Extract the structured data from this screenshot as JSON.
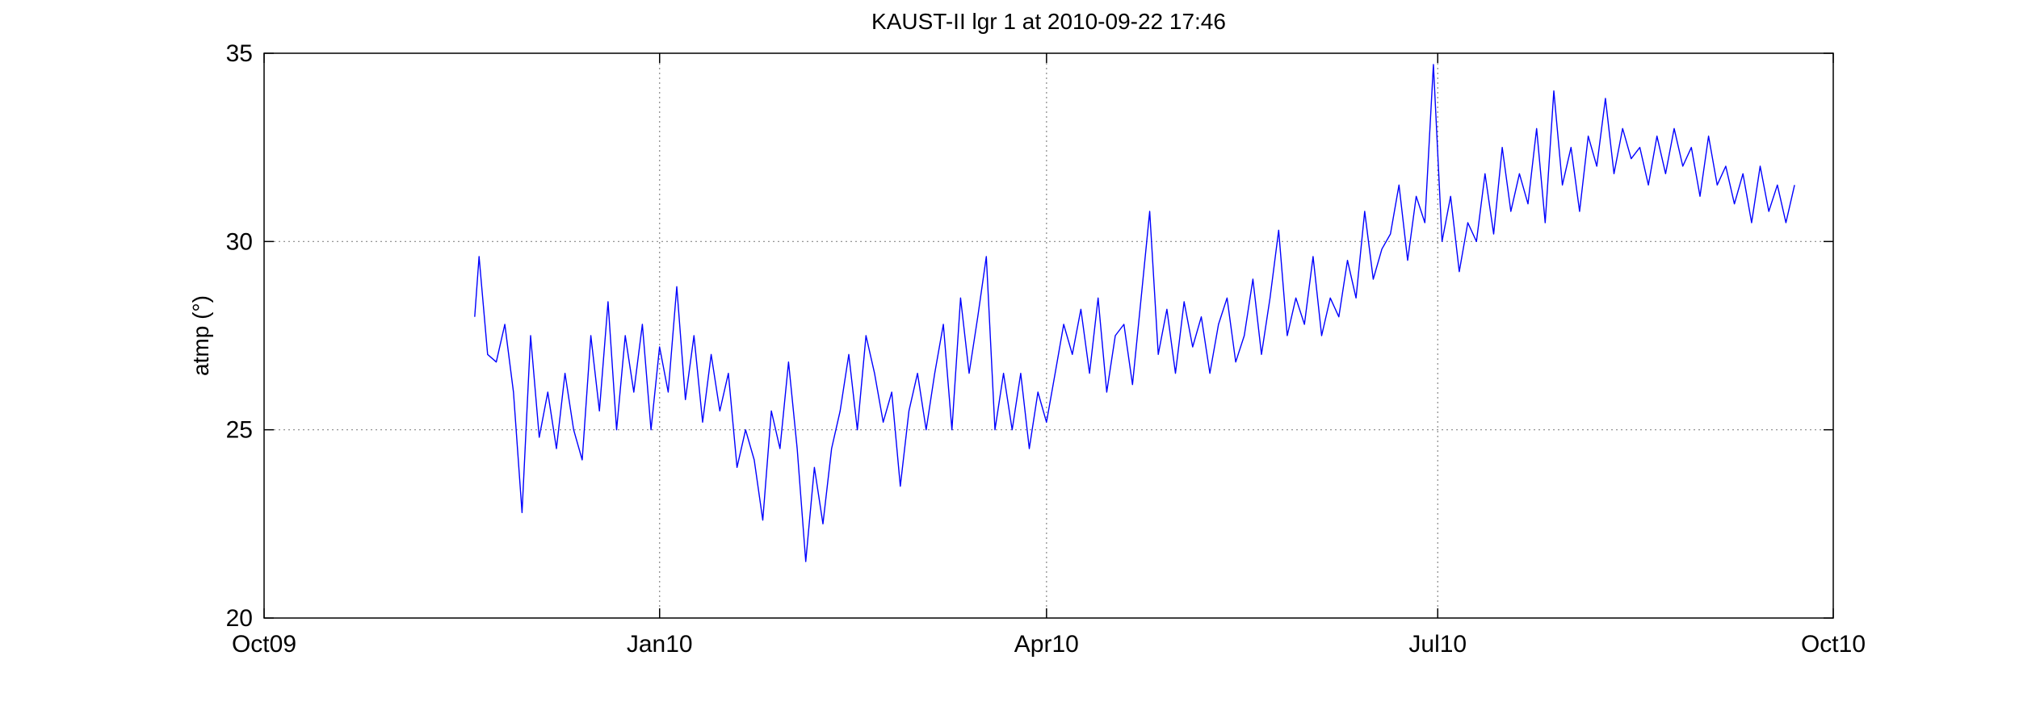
{
  "chart_data": {
    "type": "line",
    "title": "KAUST-II lgr 1 at 2010-09-22 17:46",
    "xlabel": "",
    "ylabel": "atmp (°)",
    "xlim": [
      "2009-10-01",
      "2010-10-01"
    ],
    "ylim": [
      20,
      35
    ],
    "xticks": [
      {
        "date": "2009-10-01",
        "label": "Oct09"
      },
      {
        "date": "2010-01-01",
        "label": "Jan10"
      },
      {
        "date": "2010-04-01",
        "label": "Apr10"
      },
      {
        "date": "2010-07-01",
        "label": "Jul10"
      },
      {
        "date": "2010-10-01",
        "label": "Oct10"
      }
    ],
    "yticks": [
      20,
      25,
      30,
      35
    ],
    "grid": true,
    "line_color": "#0000ff",
    "series": [
      {
        "name": "",
        "x": [
          "2009-11-19",
          "2009-11-20",
          "2009-11-22",
          "2009-11-24",
          "2009-11-26",
          "2009-11-28",
          "2009-11-30",
          "2009-12-02",
          "2009-12-04",
          "2009-12-06",
          "2009-12-08",
          "2009-12-10",
          "2009-12-12",
          "2009-12-14",
          "2009-12-16",
          "2009-12-18",
          "2009-12-20",
          "2009-12-22",
          "2009-12-24",
          "2009-12-26",
          "2009-12-28",
          "2009-12-30",
          "2010-01-01",
          "2010-01-03",
          "2010-01-05",
          "2010-01-07",
          "2010-01-09",
          "2010-01-11",
          "2010-01-13",
          "2010-01-15",
          "2010-01-17",
          "2010-01-19",
          "2010-01-21",
          "2010-01-23",
          "2010-01-25",
          "2010-01-27",
          "2010-01-29",
          "2010-01-31",
          "2010-02-02",
          "2010-02-04",
          "2010-02-06",
          "2010-02-08",
          "2010-02-10",
          "2010-02-12",
          "2010-02-14",
          "2010-02-16",
          "2010-02-18",
          "2010-02-20",
          "2010-02-22",
          "2010-02-24",
          "2010-02-26",
          "2010-02-28",
          "2010-03-02",
          "2010-03-04",
          "2010-03-06",
          "2010-03-08",
          "2010-03-10",
          "2010-03-12",
          "2010-03-14",
          "2010-03-16",
          "2010-03-18",
          "2010-03-20",
          "2010-03-22",
          "2010-03-24",
          "2010-03-26",
          "2010-03-28",
          "2010-03-30",
          "2010-04-01",
          "2010-04-03",
          "2010-04-05",
          "2010-04-07",
          "2010-04-09",
          "2010-04-11",
          "2010-04-13",
          "2010-04-15",
          "2010-04-17",
          "2010-04-19",
          "2010-04-21",
          "2010-04-23",
          "2010-04-25",
          "2010-04-27",
          "2010-04-29",
          "2010-05-01",
          "2010-05-03",
          "2010-05-05",
          "2010-05-07",
          "2010-05-09",
          "2010-05-11",
          "2010-05-13",
          "2010-05-15",
          "2010-05-17",
          "2010-05-19",
          "2010-05-21",
          "2010-05-23",
          "2010-05-25",
          "2010-05-27",
          "2010-05-29",
          "2010-05-31",
          "2010-06-02",
          "2010-06-04",
          "2010-06-06",
          "2010-06-08",
          "2010-06-10",
          "2010-06-12",
          "2010-06-14",
          "2010-06-16",
          "2010-06-18",
          "2010-06-20",
          "2010-06-22",
          "2010-06-24",
          "2010-06-26",
          "2010-06-28",
          "2010-06-30",
          "2010-07-02",
          "2010-07-04",
          "2010-07-06",
          "2010-07-08",
          "2010-07-10",
          "2010-07-12",
          "2010-07-14",
          "2010-07-16",
          "2010-07-18",
          "2010-07-20",
          "2010-07-22",
          "2010-07-24",
          "2010-07-26",
          "2010-07-28",
          "2010-07-30",
          "2010-08-01",
          "2010-08-03",
          "2010-08-05",
          "2010-08-07",
          "2010-08-09",
          "2010-08-11",
          "2010-08-13",
          "2010-08-15",
          "2010-08-17",
          "2010-08-19",
          "2010-08-21",
          "2010-08-23",
          "2010-08-25",
          "2010-08-27",
          "2010-08-29",
          "2010-08-31",
          "2010-09-02",
          "2010-09-04",
          "2010-09-06",
          "2010-09-08",
          "2010-09-10",
          "2010-09-12",
          "2010-09-14",
          "2010-09-16",
          "2010-09-18",
          "2010-09-20",
          "2010-09-22"
        ],
        "y": [
          28.0,
          29.6,
          27.0,
          26.8,
          27.8,
          26.0,
          22.8,
          27.5,
          24.8,
          26.0,
          24.5,
          26.5,
          25.0,
          24.2,
          27.5,
          25.5,
          28.4,
          25.0,
          27.5,
          26.0,
          27.8,
          25.0,
          27.2,
          26.0,
          28.8,
          25.8,
          27.5,
          25.2,
          27.0,
          25.5,
          26.5,
          24.0,
          25.0,
          24.2,
          22.6,
          25.5,
          24.5,
          26.8,
          24.5,
          21.5,
          24.0,
          22.5,
          24.5,
          25.5,
          27.0,
          25.0,
          27.5,
          26.5,
          25.2,
          26.0,
          23.5,
          25.5,
          26.5,
          25.0,
          26.5,
          27.8,
          25.0,
          28.5,
          26.5,
          28.0,
          29.6,
          25.0,
          26.5,
          25.0,
          26.5,
          24.5,
          26.0,
          25.2,
          26.5,
          27.8,
          27.0,
          28.2,
          26.5,
          28.5,
          26.0,
          27.5,
          27.8,
          26.2,
          28.5,
          30.8,
          27.0,
          28.2,
          26.5,
          28.4,
          27.2,
          28.0,
          26.5,
          27.8,
          28.5,
          26.8,
          27.5,
          29.0,
          27.0,
          28.5,
          30.3,
          27.5,
          28.5,
          27.8,
          29.6,
          27.5,
          28.5,
          28.0,
          29.5,
          28.5,
          30.8,
          29.0,
          29.8,
          30.2,
          31.5,
          29.5,
          31.2,
          30.5,
          34.7,
          30.0,
          31.2,
          29.2,
          30.5,
          30.0,
          31.8,
          30.2,
          32.5,
          30.8,
          31.8,
          31.0,
          33.0,
          30.5,
          34.0,
          31.5,
          32.5,
          30.8,
          32.8,
          32.0,
          33.8,
          31.8,
          33.0,
          32.2,
          32.5,
          31.5,
          32.8,
          31.8,
          33.0,
          32.0,
          32.5,
          31.2,
          32.8,
          31.5,
          32.0,
          31.0,
          31.8,
          30.5,
          32.0,
          30.8,
          31.5,
          30.5,
          31.5
        ]
      }
    ]
  }
}
